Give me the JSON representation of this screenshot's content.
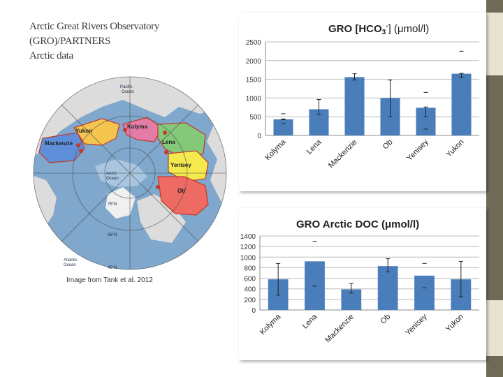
{
  "slide": {
    "title_lines": [
      "Arctic Great Rivers Observatory",
      "(GRO)/PARTNERS",
      "Arctic data"
    ],
    "caption": "Image from Tank et al. 2012"
  },
  "map": {
    "labels": {
      "pacific": [
        "Pacific",
        "Ocean"
      ],
      "arctic": [
        "Arctic",
        "Ocean"
      ],
      "atlantic": [
        "Atlantic",
        "Ocean"
      ],
      "yukon": "Yukon",
      "kolyma": "Kolyma",
      "mackenzie": "Mackenzie",
      "lena": "Lena",
      "yenisey": "Yenisey",
      "ob": "Ob'",
      "lat75": "75°N",
      "lat66": "66°N",
      "lat45": "45°N"
    },
    "colors": {
      "ocean": "#7fa8cc",
      "land": "#dcdcdc",
      "kolyma": "#e37ca6",
      "mackenzie": "#5f8fdb",
      "lena": "#84c979",
      "yenisey": "#f4ea4e",
      "ob": "#ee6b63",
      "yukon": "#f6c54f",
      "outline": "#c0392b"
    }
  },
  "chart_data": [
    {
      "type": "bar",
      "title": "GRO [HCO3-] (μmol/l)",
      "title_parts": {
        "a": "GRO [HCO",
        "sub": "3",
        "sup": "-",
        "b": "] (μmol/l)"
      },
      "categories": [
        "Kolyma",
        "Lena",
        "Mackenzie",
        "Ob",
        "Yenisey",
        "Yukon"
      ],
      "values": [
        430,
        700,
        1560,
        1000,
        740,
        1650
      ],
      "error_low": [
        420,
        560,
        1480,
        500,
        500,
        1550
      ],
      "error_high": [
        440,
        960,
        1650,
        1480,
        760,
        1660
      ],
      "extra_marks": [
        {
          "category": "Kolyma",
          "value": 580
        },
        {
          "category": "Yenisey",
          "value": 1150
        },
        {
          "category": "Yukon",
          "value": 2250
        },
        {
          "category": "Yenisey",
          "value": 170
        },
        {
          "category": "Kolyma",
          "value": 320
        }
      ],
      "ylim": [
        0,
        2500
      ],
      "yticks": [
        0,
        500,
        1000,
        1500,
        2000,
        2500
      ],
      "grid": true,
      "color": "#4a7ebb"
    },
    {
      "type": "bar",
      "title": "GRO Arctic DOC (μmol/l)",
      "categories": [
        "Kolyma",
        "Lena",
        "Mackenzie",
        "Ob",
        "Yenisey",
        "Yukon"
      ],
      "values": [
        580,
        920,
        390,
        830,
        650,
        580
      ],
      "error_low": [
        280,
        920,
        320,
        720,
        650,
        250
      ],
      "error_high": [
        880,
        920,
        500,
        970,
        650,
        920
      ],
      "extra_marks": [
        {
          "category": "Lena",
          "value": 1300
        },
        {
          "category": "Lena",
          "value": 450
        },
        {
          "category": "Yenisey",
          "value": 880
        },
        {
          "category": "Yenisey",
          "value": 420
        }
      ],
      "ylim": [
        0,
        1400
      ],
      "yticks": [
        0,
        200,
        400,
        600,
        800,
        1000,
        1200,
        1400
      ],
      "grid": true,
      "color": "#4a7ebb"
    }
  ]
}
